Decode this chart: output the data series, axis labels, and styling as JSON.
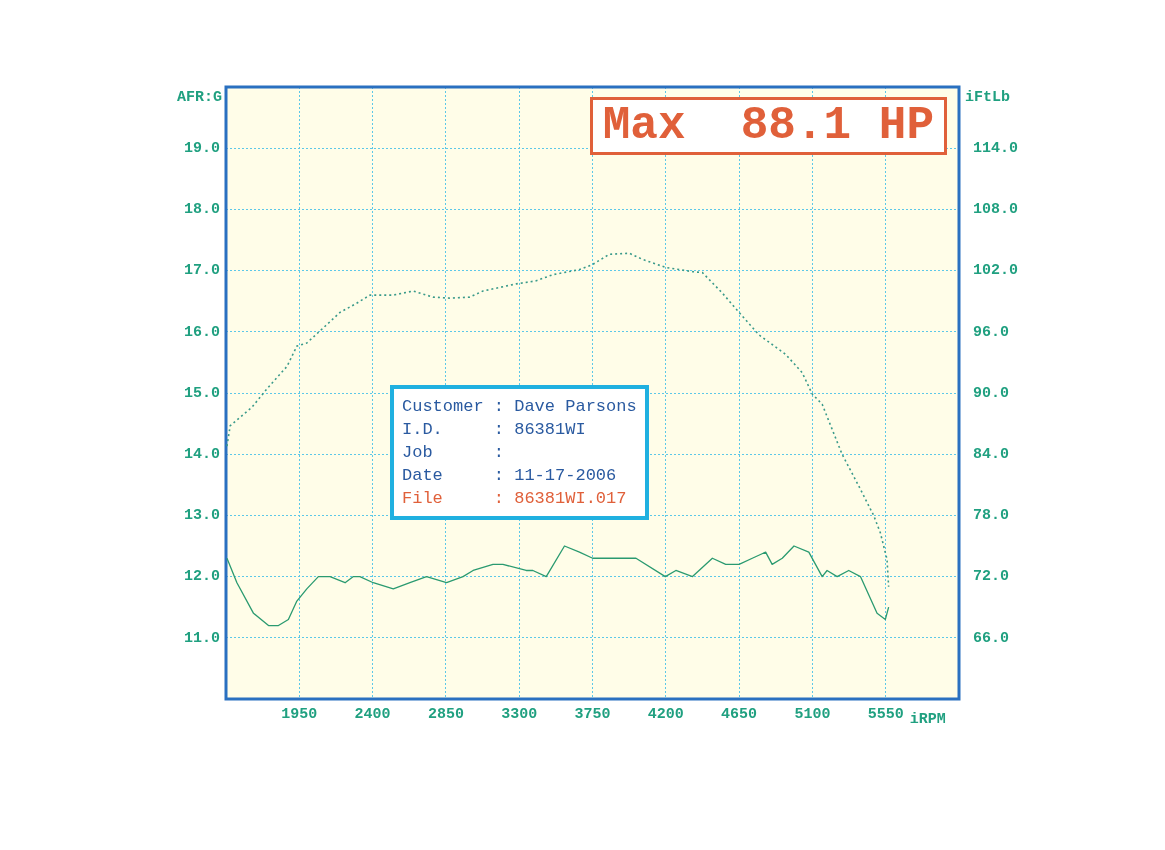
{
  "chart_data": {
    "type": "line",
    "xlabel": "iRPM",
    "ylabel": "AFR:G",
    "y2label": "iFtLb",
    "xlim": [
      1500,
      6000
    ],
    "xticks": [
      1950,
      2400,
      2850,
      3300,
      3750,
      4200,
      4650,
      5100,
      5550
    ],
    "ylim": [
      10,
      20
    ],
    "yticks": [
      {
        "value": 11,
        "label": "11.0"
      },
      {
        "value": 12,
        "label": "12.0"
      },
      {
        "value": 13,
        "label": "13.0"
      },
      {
        "value": 14,
        "label": "14.0"
      },
      {
        "value": 15,
        "label": "15.0"
      },
      {
        "value": 16,
        "label": "16.0"
      },
      {
        "value": 17,
        "label": "17.0"
      },
      {
        "value": 18,
        "label": "18.0"
      },
      {
        "value": 19,
        "label": "19.0"
      }
    ],
    "y2lim": [
      60,
      120
    ],
    "y2ticks": [
      {
        "value": 66,
        "label": "66.0"
      },
      {
        "value": 72,
        "label": "72.0"
      },
      {
        "value": 78,
        "label": "78.0"
      },
      {
        "value": 84,
        "label": "84.0"
      },
      {
        "value": 90,
        "label": "90.0"
      },
      {
        "value": 96,
        "label": "96.0"
      },
      {
        "value": 102,
        "label": "102.0"
      },
      {
        "value": 108,
        "label": "108.0"
      },
      {
        "value": 114,
        "label": "114.0"
      }
    ],
    "grid": true,
    "legend": false,
    "marker": "none",
    "series": [
      {
        "color": "#2a9a70",
        "line_style": "solid",
        "x": [
          1506,
          1567,
          1669,
          1761,
          1822,
          1883,
          1935,
          1996,
          2067,
          2139,
          2231,
          2282,
          2322,
          2404,
          2527,
          2629,
          2731,
          2854,
          2955,
          3017,
          3139,
          3200,
          3343,
          3384,
          3466,
          3578,
          3670,
          3751,
          3915,
          4017,
          4197,
          4262,
          4364,
          4486,
          4568,
          4650,
          4731,
          4813,
          4853,
          4915,
          4987,
          5078,
          5160,
          5190,
          5252,
          5323,
          5395,
          5497,
          5548,
          5568
        ],
        "values": [
          12.3,
          11.9,
          11.4,
          11.2,
          11.2,
          11.3,
          11.6,
          11.8,
          12.0,
          12.0,
          11.9,
          12.0,
          12.0,
          11.9,
          11.8,
          11.9,
          12.0,
          11.9,
          12.0,
          12.1,
          12.2,
          12.2,
          12.1,
          12.1,
          12.0,
          12.5,
          12.4,
          12.3,
          12.3,
          12.3,
          12.0,
          12.1,
          12.0,
          12.3,
          12.2,
          12.2,
          12.3,
          12.4,
          12.2,
          12.3,
          12.5,
          12.4,
          12.0,
          12.1,
          12.0,
          12.1,
          12.0,
          11.4,
          11.3,
          11.5
        ]
      },
      {
        "color": "#3a9a8a",
        "line_style": "dotted",
        "axis": "y2",
        "x": [
          1506,
          1526,
          1659,
          1751,
          1874,
          1935,
          1996,
          2078,
          2200,
          2302,
          2384,
          2527,
          2649,
          2771,
          2873,
          2996,
          3078,
          3282,
          3405,
          3506,
          3670,
          3751,
          3853,
          3976,
          4057,
          4201,
          4364,
          4425,
          4547,
          4650,
          4772,
          4935,
          5037,
          5099,
          5160,
          5282,
          5384,
          5476,
          5517,
          5558,
          5568
        ],
        "values": [
          84.8,
          86.8,
          88.6,
          90.4,
          92.6,
          94.6,
          94.9,
          96.1,
          97.9,
          98.8,
          99.6,
          99.6,
          100.0,
          99.4,
          99.3,
          99.4,
          100.0,
          100.7,
          101.0,
          101.6,
          102.1,
          102.6,
          103.6,
          103.7,
          103.1,
          102.3,
          101.9,
          101.8,
          99.8,
          97.9,
          95.7,
          93.8,
          92.0,
          89.9,
          88.9,
          84.0,
          80.9,
          78.0,
          76.3,
          73.7,
          71.0
        ]
      }
    ],
    "annotations": [
      "Max  88.1 HP",
      "Customer : Dave Parsons",
      "I.D.     : 86381WI",
      "Job      :",
      "Date     : 11-17-2006",
      "File     : 86381WI.017"
    ]
  }
}
